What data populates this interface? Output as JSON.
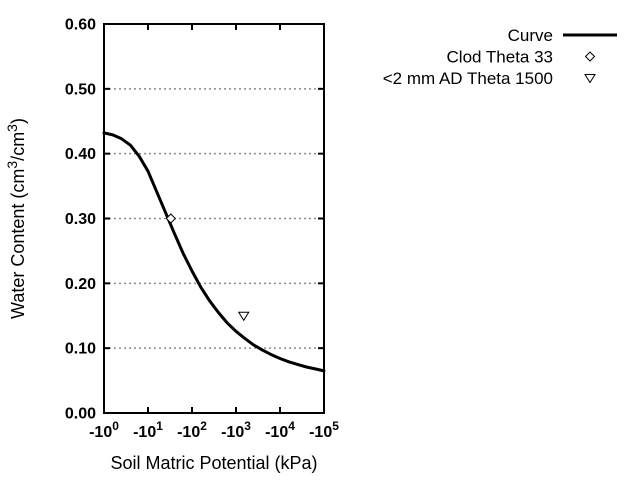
{
  "figure": {
    "background_color": "#ffffff",
    "axis_color": "#000000",
    "grid_color": "#8c8c8c",
    "curve_color": "#000000",
    "marker_fill": "#ffffff"
  },
  "chart_data": {
    "type": "line",
    "title": "",
    "xlabel": "Soil Matric Potential (kPa)",
    "ylabel_parts": [
      {
        "text": "Water Content (cm"
      },
      {
        "text": "3",
        "sup": true
      },
      {
        "text": "/cm"
      },
      {
        "text": "3",
        "sup": true
      },
      {
        "text": ")"
      }
    ],
    "x_scale": "negative_log10_kpa",
    "xlim_log10": [
      0,
      5
    ],
    "x_ticks": [
      {
        "base": "-10",
        "exp": "0"
      },
      {
        "base": "-10",
        "exp": "1"
      },
      {
        "base": "-10",
        "exp": "2"
      },
      {
        "base": "-10",
        "exp": "3"
      },
      {
        "base": "-10",
        "exp": "4"
      },
      {
        "base": "-10",
        "exp": "5"
      }
    ],
    "ylim": [
      0.0,
      0.6
    ],
    "y_ticks": [
      "0.00",
      "0.10",
      "0.20",
      "0.30",
      "0.40",
      "0.50",
      "0.60"
    ],
    "grid": "horizontal-dashed",
    "legend_position": "top-right-outside",
    "series": [
      {
        "name": "Curve",
        "style": "line",
        "points_log10x_theta": [
          [
            0.0,
            0.432
          ],
          [
            0.2,
            0.429
          ],
          [
            0.4,
            0.423
          ],
          [
            0.6,
            0.413
          ],
          [
            0.8,
            0.396
          ],
          [
            1.0,
            0.373
          ],
          [
            1.2,
            0.341
          ],
          [
            1.4,
            0.309
          ],
          [
            1.6,
            0.277
          ],
          [
            1.8,
            0.246
          ],
          [
            2.0,
            0.219
          ],
          [
            2.2,
            0.194
          ],
          [
            2.4,
            0.173
          ],
          [
            2.6,
            0.155
          ],
          [
            2.8,
            0.139
          ],
          [
            3.0,
            0.126
          ],
          [
            3.2,
            0.115
          ],
          [
            3.4,
            0.105
          ],
          [
            3.6,
            0.097
          ],
          [
            3.8,
            0.09
          ],
          [
            4.0,
            0.084
          ],
          [
            4.2,
            0.079
          ],
          [
            4.4,
            0.075
          ],
          [
            4.6,
            0.071
          ],
          [
            4.8,
            0.068
          ],
          [
            5.0,
            0.065
          ]
        ]
      },
      {
        "name": "Clod Theta 33",
        "style": "diamond-open",
        "points_kpa_theta": [
          [
            -33,
            0.3
          ]
        ]
      },
      {
        "name": "<2 mm AD Theta 1500",
        "style": "triangle-down-open",
        "points_kpa_theta": [
          [
            -1500,
            0.15
          ]
        ]
      }
    ]
  }
}
